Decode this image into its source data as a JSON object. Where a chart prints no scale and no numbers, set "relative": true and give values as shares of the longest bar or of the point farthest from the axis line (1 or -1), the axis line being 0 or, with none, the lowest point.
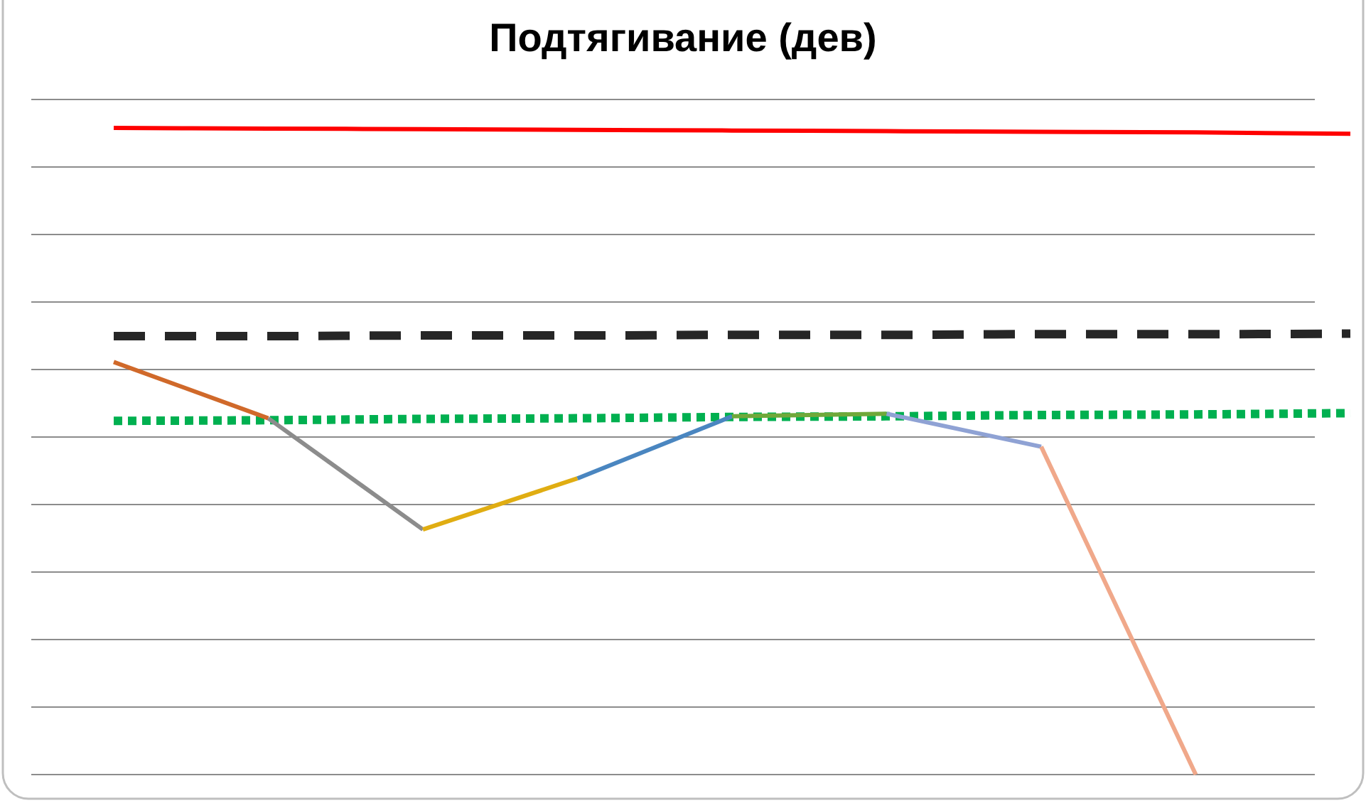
{
  "chart_data": {
    "type": "line",
    "title": "Подтягивание (дев)",
    "relative": true,
    "grid": "y",
    "categories": [
      null,
      null,
      null,
      null,
      null,
      null,
      null,
      null,
      null
    ],
    "series": [
      {
        "color": "#ff0000",
        "line_style": "solid",
        "values": [
          1,
          0.999,
          0.998,
          0.997,
          0.996,
          0.995,
          0.994,
          0.993,
          0.991
        ]
      },
      {
        "color": "#262626",
        "line_style": "dashed",
        "values": [
          0.678,
          0.678,
          0.679,
          0.679,
          0.68,
          0.68,
          0.681,
          0.681,
          0.682
        ]
      },
      {
        "color": "#00b050",
        "line_style": "dotted",
        "values": [
          0.547,
          0.548,
          0.55,
          0.551,
          0.553,
          0.554,
          0.556,
          0.557,
          0.559
        ]
      },
      {
        "color": "#d0692a",
        "line_style": "solid",
        "values": [
          0.638,
          0.551,
          null,
          null,
          null,
          null,
          null,
          null,
          null
        ]
      },
      {
        "color": "#8c8c8c",
        "line_style": "solid",
        "values": [
          null,
          0.551,
          0.379,
          null,
          null,
          null,
          null,
          null,
          null
        ]
      },
      {
        "color": "#e0ad12",
        "line_style": "solid",
        "values": [
          null,
          null,
          0.379,
          0.458,
          null,
          null,
          null,
          null,
          null
        ]
      },
      {
        "color": "#4a86c0",
        "line_style": "solid",
        "values": [
          null,
          null,
          null,
          0.458,
          0.554,
          null,
          null,
          null,
          null
        ]
      },
      {
        "color": "#70a83a",
        "line_style": "solid",
        "values": [
          null,
          null,
          null,
          null,
          0.554,
          0.558,
          null,
          null,
          null
        ]
      },
      {
        "color": "#8fa2d4",
        "line_style": "solid",
        "values": [
          null,
          null,
          null,
          null,
          null,
          0.558,
          0.507,
          null,
          null
        ]
      },
      {
        "color": "#f0a88a",
        "line_style": "solid",
        "values": [
          null,
          null,
          null,
          null,
          null,
          null,
          0.507,
          0,
          null
        ]
      }
    ]
  }
}
